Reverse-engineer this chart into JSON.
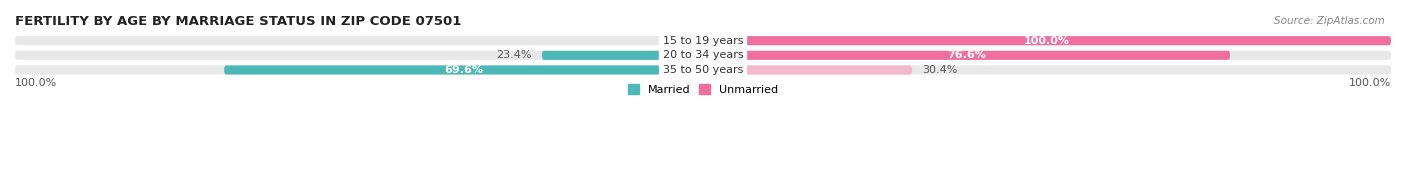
{
  "title": "FERTILITY BY AGE BY MARRIAGE STATUS IN ZIP CODE 07501",
  "source": "Source: ZipAtlas.com",
  "rows": [
    {
      "label": "15 to 19 years",
      "married": 0.0,
      "unmarried": 100.0
    },
    {
      "label": "20 to 34 years",
      "married": 23.4,
      "unmarried": 76.6
    },
    {
      "label": "35 to 50 years",
      "married": 69.6,
      "unmarried": 30.4
    }
  ],
  "married_color": "#4db8b8",
  "unmarried_color_large": "#f06fa0",
  "unmarried_color_small": "#f4b8cc",
  "bar_bg_color": "#e8e8e8",
  "legend_married": "Married",
  "legend_unmarried": "Unmarried",
  "x_left_label": "100.0%",
  "x_right_label": "100.0%",
  "title_fontsize": 9.5,
  "source_fontsize": 7.5,
  "label_fontsize": 8,
  "bar_label_fontsize": 8
}
